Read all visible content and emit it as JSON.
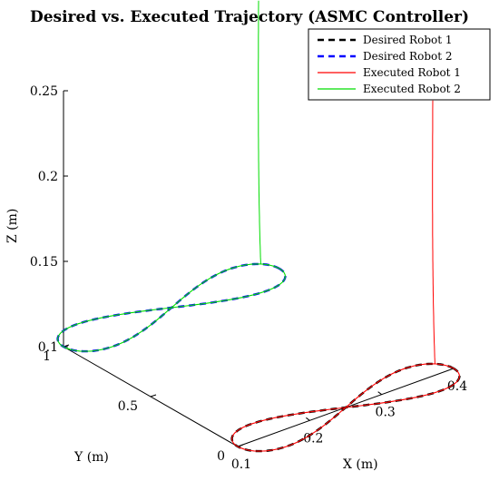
{
  "chart_data": {
    "type": "line",
    "title": "Desired vs. Executed Trajectory (ASMC Controller)",
    "xlabel": "X (m)",
    "ylabel": "Y (m)",
    "zlabel": "Z (m)",
    "x_ticks": [
      "0.1",
      "0.2",
      "0.3",
      "0.4"
    ],
    "y_ticks": [
      "0",
      "0.5",
      "1"
    ],
    "z_ticks": [
      "0.1",
      "0.15",
      "0.2",
      "0.25"
    ],
    "xlim": [
      0.1,
      0.4
    ],
    "ylim": [
      0,
      1
    ],
    "zlim": [
      0.1,
      0.25
    ],
    "grid": false,
    "legend_position": "top-right",
    "series": [
      {
        "name": "Desired Robot 1",
        "color": "#000000",
        "style": "dashed",
        "robot": 1,
        "kind": "desired"
      },
      {
        "name": "Desired Robot 2",
        "color": "#0000ff",
        "style": "dashed",
        "robot": 2,
        "kind": "desired"
      },
      {
        "name": "Executed Robot 1",
        "color": "#ff0000",
        "style": "solid",
        "robot": 1,
        "kind": "executed"
      },
      {
        "name": "Executed Robot 2",
        "color": "#00dd00",
        "style": "solid",
        "robot": 2,
        "kind": "executed"
      }
    ],
    "robots": [
      {
        "id": 1,
        "y_center": 0.0,
        "x_center": 0.25,
        "x_amplitude": 0.15,
        "y_amplitude": 0.12,
        "z": 0.1,
        "start": {
          "x": 0.4,
          "y": 0.12,
          "z": 0.25
        }
      },
      {
        "id": 2,
        "y_center": 1.0,
        "x_center": 0.25,
        "x_amplitude": 0.15,
        "y_amplitude": 0.12,
        "z": 0.1,
        "start": {
          "x": 0.4,
          "y": 1.12,
          "z": 0.25
        }
      }
    ]
  }
}
